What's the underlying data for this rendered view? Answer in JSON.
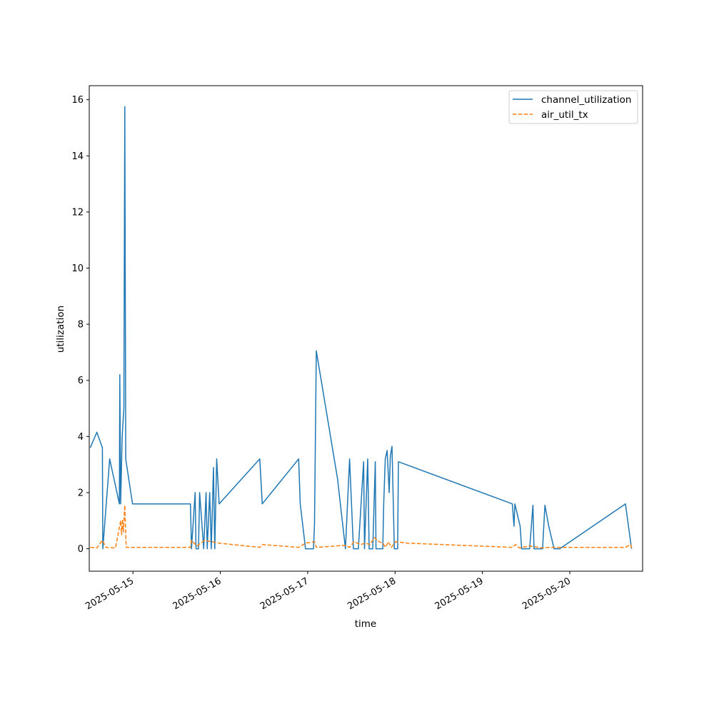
{
  "chart_data": {
    "type": "line",
    "title": "",
    "xlabel": "time",
    "ylabel": "utilization",
    "x_type": "datetime",
    "xlim": [
      "2025-05-14T12:00",
      "2025-05-20T20:00"
    ],
    "ylim": [
      -0.8,
      16.5
    ],
    "x_ticks": [
      "2025-05-15",
      "2025-05-16",
      "2025-05-17",
      "2025-05-18",
      "2025-05-19",
      "2025-05-20"
    ],
    "y_ticks": [
      0,
      2,
      4,
      6,
      8,
      10,
      12,
      14,
      16
    ],
    "grid": false,
    "legend_position": "top-right",
    "series": [
      {
        "name": "channel_utilization",
        "color": "#1f77b4",
        "style": "solid",
        "points": [
          [
            "2025-05-14T12:17",
            3.6
          ],
          [
            "2025-05-14T14:05",
            4.15
          ],
          [
            "2025-05-14T15:36",
            3.6
          ],
          [
            "2025-05-14T15:43",
            0.0
          ],
          [
            "2025-05-14T17:36",
            3.2
          ],
          [
            "2025-05-14T20:17",
            1.6
          ],
          [
            "2025-05-14T20:24",
            6.2
          ],
          [
            "2025-05-14T20:38",
            1.6
          ],
          [
            "2025-05-14T21:02",
            4.0
          ],
          [
            "2025-05-14T21:31",
            5.0
          ],
          [
            "2025-05-14T21:46",
            15.75
          ],
          [
            "2025-05-14T22:01",
            3.2
          ],
          [
            "2025-05-14T23:53",
            1.6
          ],
          [
            "2025-05-15T15:48",
            1.6
          ],
          [
            "2025-05-15T16:05",
            0.0
          ],
          [
            "2025-05-15T17:05",
            2.0
          ],
          [
            "2025-05-15T17:19",
            0.0
          ],
          [
            "2025-05-15T18:00",
            0.0
          ],
          [
            "2025-05-15T18:19",
            2.0
          ],
          [
            "2025-05-15T19:26",
            0.0
          ],
          [
            "2025-05-15T20:05",
            2.0
          ],
          [
            "2025-05-15T20:24",
            0.0
          ],
          [
            "2025-05-15T21:05",
            2.0
          ],
          [
            "2025-05-15T21:31",
            0.0
          ],
          [
            "2025-05-15T22:08",
            2.9
          ],
          [
            "2025-05-15T22:29",
            0.0
          ],
          [
            "2025-05-15T23:01",
            3.2
          ],
          [
            "2025-05-15T23:41",
            1.6
          ],
          [
            "2025-05-16T10:50",
            3.2
          ],
          [
            "2025-05-16T11:31",
            1.6
          ],
          [
            "2025-05-16T21:31",
            3.2
          ],
          [
            "2025-05-16T21:57",
            1.6
          ],
          [
            "2025-05-16T23:24",
            0.0
          ],
          [
            "2025-05-17T01:36",
            0.0
          ],
          [
            "2025-05-17T01:53",
            0.9
          ],
          [
            "2025-05-17T02:22",
            7.05
          ],
          [
            "2025-05-17T08:12",
            2.5
          ],
          [
            "2025-05-17T10:22",
            0.0
          ],
          [
            "2025-05-17T11:31",
            3.2
          ],
          [
            "2025-05-17T12:34",
            0.0
          ],
          [
            "2025-05-17T13:55",
            0.0
          ],
          [
            "2025-05-17T15:22",
            3.1
          ],
          [
            "2025-05-17T15:36",
            0.0
          ],
          [
            "2025-05-17T16:29",
            3.2
          ],
          [
            "2025-05-17T16:53",
            0.0
          ],
          [
            "2025-05-17T17:53",
            0.0
          ],
          [
            "2025-05-17T18:34",
            3.1
          ],
          [
            "2025-05-17T18:46",
            0.0
          ],
          [
            "2025-05-17T20:38",
            0.0
          ],
          [
            "2025-05-17T20:53",
            1.6
          ],
          [
            "2025-05-17T21:19",
            3.2
          ],
          [
            "2025-05-17T21:50",
            3.5
          ],
          [
            "2025-05-17T22:24",
            2.0
          ],
          [
            "2025-05-17T22:43",
            3.3
          ],
          [
            "2025-05-17T23:10",
            3.65
          ],
          [
            "2025-05-17T23:48",
            0.0
          ],
          [
            "2025-05-18T00:43",
            0.0
          ],
          [
            "2025-05-18T00:55",
            3.1
          ],
          [
            "2025-05-19T08:12",
            1.6
          ],
          [
            "2025-05-19T08:41",
            0.8
          ],
          [
            "2025-05-19T08:55",
            1.6
          ],
          [
            "2025-05-19T10:22",
            0.8
          ],
          [
            "2025-05-19T10:46",
            0.0
          ],
          [
            "2025-05-19T12:58",
            0.0
          ],
          [
            "2025-05-19T13:53",
            1.55
          ],
          [
            "2025-05-19T14:10",
            0.0
          ],
          [
            "2025-05-19T16:31",
            0.0
          ],
          [
            "2025-05-19T17:10",
            1.55
          ],
          [
            "2025-05-19T18:14",
            0.8
          ],
          [
            "2025-05-19T19:41",
            0.0
          ],
          [
            "2025-05-19T21:14",
            0.0
          ],
          [
            "2025-05-20T15:17",
            1.6
          ],
          [
            "2025-05-20T16:58",
            0.0
          ]
        ]
      },
      {
        "name": "air_util_tx",
        "color": "#ff7f0e",
        "style": "dashed",
        "points": [
          [
            "2025-05-14T12:17",
            0.05
          ],
          [
            "2025-05-14T14:05",
            0.03
          ],
          [
            "2025-05-14T15:36",
            0.3
          ],
          [
            "2025-05-14T16:34",
            0.05
          ],
          [
            "2025-05-14T19:12",
            0.03
          ],
          [
            "2025-05-14T20:38",
            1.0
          ],
          [
            "2025-05-14T20:53",
            0.5
          ],
          [
            "2025-05-14T21:07",
            1.05
          ],
          [
            "2025-05-14T21:22",
            0.6
          ],
          [
            "2025-05-14T21:46",
            1.55
          ],
          [
            "2025-05-14T22:08",
            0.05
          ],
          [
            "2025-05-15T15:48",
            0.05
          ],
          [
            "2025-05-15T16:05",
            0.3
          ],
          [
            "2025-05-15T17:36",
            0.1
          ],
          [
            "2025-05-15T19:41",
            0.3
          ],
          [
            "2025-05-15T23:41",
            0.2
          ],
          [
            "2025-05-16T10:50",
            0.05
          ],
          [
            "2025-05-16T11:31",
            0.15
          ],
          [
            "2025-05-16T21:31",
            0.05
          ],
          [
            "2025-05-16T23:24",
            0.2
          ],
          [
            "2025-05-17T01:53",
            0.25
          ],
          [
            "2025-05-17T02:22",
            0.05
          ],
          [
            "2025-05-17T10:22",
            0.12
          ],
          [
            "2025-05-17T11:31",
            0.05
          ],
          [
            "2025-05-17T12:43",
            0.25
          ],
          [
            "2025-05-17T14:34",
            0.15
          ],
          [
            "2025-05-17T15:50",
            0.2
          ],
          [
            "2025-05-17T17:08",
            0.15
          ],
          [
            "2025-05-17T18:19",
            0.4
          ],
          [
            "2025-05-17T19:34",
            0.25
          ],
          [
            "2025-05-17T20:38",
            0.2
          ],
          [
            "2025-05-17T21:22",
            0.05
          ],
          [
            "2025-05-17T22:10",
            0.25
          ],
          [
            "2025-05-17T22:58",
            0.05
          ],
          [
            "2025-05-18T00:14",
            0.25
          ],
          [
            "2025-05-18T03:22",
            0.2
          ],
          [
            "2025-05-19T08:12",
            0.05
          ],
          [
            "2025-05-19T09:07",
            0.15
          ],
          [
            "2025-05-19T10:07",
            0.03
          ],
          [
            "2025-05-19T12:58",
            0.1
          ],
          [
            "2025-05-19T16:31",
            0.03
          ],
          [
            "2025-05-19T18:14",
            0.05
          ],
          [
            "2025-05-20T15:17",
            0.05
          ],
          [
            "2025-05-20T16:43",
            0.15
          ],
          [
            "2025-05-20T16:58",
            0.03
          ]
        ]
      }
    ]
  }
}
